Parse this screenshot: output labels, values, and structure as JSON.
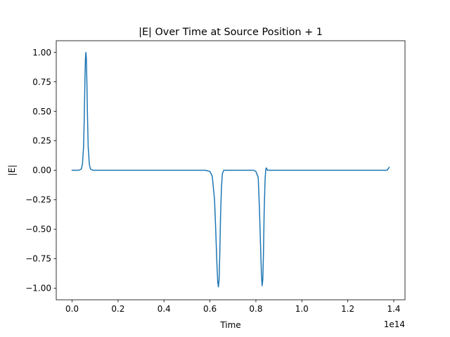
{
  "chart_data": {
    "type": "line",
    "title": "|E| Over Time at Source Position + 1",
    "xlabel": "Time",
    "ylabel": "|E|",
    "x_offset_text": "1e14",
    "xlim": [
      -0.069,
      1.449
    ],
    "ylim": [
      -1.099,
      1.099
    ],
    "x_ticks": [
      0.0,
      0.2,
      0.4,
      0.6,
      0.8,
      1.0,
      1.2,
      1.4
    ],
    "x_tick_labels": [
      "0.0",
      "0.2",
      "0.4",
      "0.6",
      "0.8",
      "1.0",
      "1.2",
      "1.4"
    ],
    "y_ticks": [
      -1.0,
      -0.75,
      -0.5,
      -0.25,
      0.0,
      0.25,
      0.5,
      0.75,
      1.0
    ],
    "y_tick_labels": [
      "−1.00",
      "−0.75",
      "−0.50",
      "−0.25",
      "0.00",
      "0.25",
      "0.50",
      "0.75",
      "1.00"
    ],
    "grid": false,
    "series": [
      {
        "color": "#1f77b4",
        "x": [
          0.0,
          0.03,
          0.04,
          0.045,
          0.05,
          0.053,
          0.056,
          0.058,
          0.06,
          0.062,
          0.064,
          0.067,
          0.07,
          0.075,
          0.08,
          0.09,
          0.1,
          0.58,
          0.6,
          0.61,
          0.62,
          0.625,
          0.63,
          0.634,
          0.637,
          0.64,
          0.643,
          0.646,
          0.65,
          0.654,
          0.66,
          0.67,
          0.79,
          0.8,
          0.81,
          0.815,
          0.82,
          0.824,
          0.827,
          0.83,
          0.833,
          0.836,
          0.84,
          0.843,
          0.846,
          0.85,
          0.87,
          1.2,
          1.37,
          1.375,
          1.38
        ],
        "y": [
          0.0,
          0.0,
          0.01,
          0.05,
          0.2,
          0.45,
          0.78,
          0.95,
          1.0,
          0.95,
          0.78,
          0.45,
          0.2,
          0.05,
          0.01,
          0.0,
          0.0,
          0.0,
          -0.01,
          -0.05,
          -0.25,
          -0.5,
          -0.78,
          -0.95,
          -0.99,
          -0.92,
          -0.7,
          -0.4,
          -0.15,
          -0.03,
          0.0,
          0.0,
          0.0,
          -0.01,
          -0.06,
          -0.3,
          -0.62,
          -0.88,
          -0.98,
          -0.93,
          -0.7,
          -0.35,
          -0.08,
          0.01,
          0.02,
          0.0,
          0.0,
          0.0,
          0.0,
          0.01,
          0.025
        ]
      }
    ]
  }
}
